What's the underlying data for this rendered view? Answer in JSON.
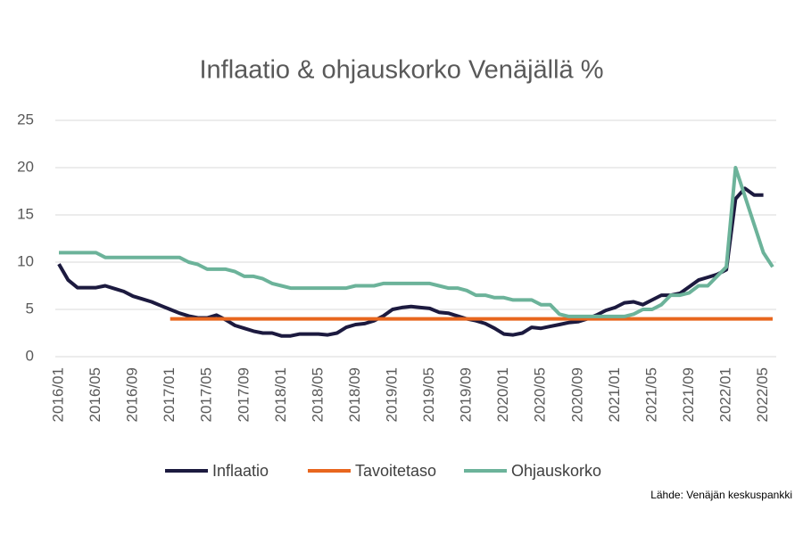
{
  "chart_data": {
    "type": "line",
    "title": "Inflaatio & ohjauskorko Venäjällä %",
    "source": "Lähde: Venäjän keskuspankki",
    "categories": [
      "2016/01",
      null,
      null,
      null,
      "2016/05",
      null,
      null,
      null,
      "2016/09",
      null,
      null,
      null,
      "2017/01",
      null,
      null,
      null,
      "2017/05",
      null,
      null,
      null,
      "2017/09",
      null,
      null,
      null,
      "2018/01",
      null,
      null,
      null,
      "2018/05",
      null,
      null,
      null,
      "2018/09",
      null,
      null,
      null,
      "2019/01",
      null,
      null,
      null,
      "2019/05",
      null,
      null,
      null,
      "2019/09",
      null,
      null,
      null,
      "2020/01",
      null,
      null,
      null,
      "2020/05",
      null,
      null,
      null,
      "2020/09",
      null,
      null,
      null,
      "2021/01",
      null,
      null,
      null,
      "2021/05",
      null,
      null,
      null,
      "2021/09",
      null,
      null,
      null,
      "2022/01",
      null,
      null,
      null,
      "2022/05",
      null
    ],
    "series": [
      {
        "name": "Inflaatio",
        "color": "#1c1a3f",
        "values": [
          9.8,
          8.1,
          7.3,
          7.3,
          7.3,
          7.5,
          7.2,
          6.9,
          6.4,
          6.1,
          5.8,
          5.4,
          5.0,
          4.6,
          4.3,
          4.1,
          4.1,
          4.4,
          3.9,
          3.3,
          3.0,
          2.7,
          2.5,
          2.5,
          2.2,
          2.2,
          2.4,
          2.4,
          2.4,
          2.3,
          2.5,
          3.1,
          3.4,
          3.5,
          3.8,
          4.3,
          5.0,
          5.2,
          5.3,
          5.2,
          5.1,
          4.7,
          4.6,
          4.3,
          4.0,
          3.8,
          3.5,
          3.0,
          2.4,
          2.3,
          2.5,
          3.1,
          3.0,
          3.2,
          3.4,
          3.6,
          3.7,
          4.0,
          4.4,
          4.9,
          5.2,
          5.7,
          5.8,
          5.5,
          6.0,
          6.5,
          6.5,
          6.7,
          7.4,
          8.1,
          8.4,
          8.7,
          9.2,
          16.7,
          17.8,
          17.1,
          17.1,
          null
        ]
      },
      {
        "name": "Tavoitetaso",
        "color": "#e8661e",
        "values": [
          null,
          null,
          null,
          null,
          null,
          null,
          null,
          null,
          null,
          null,
          null,
          null,
          4,
          4,
          4,
          4,
          4,
          4,
          4,
          4,
          4,
          4,
          4,
          4,
          4,
          4,
          4,
          4,
          4,
          4,
          4,
          4,
          4,
          4,
          4,
          4,
          4,
          4,
          4,
          4,
          4,
          4,
          4,
          4,
          4,
          4,
          4,
          4,
          4,
          4,
          4,
          4,
          4,
          4,
          4,
          4,
          4,
          4,
          4,
          4,
          4,
          4,
          4,
          4,
          4,
          4,
          4,
          4,
          4,
          4,
          4,
          4,
          4,
          4,
          4,
          4,
          4,
          4
        ]
      },
      {
        "name": "Ohjauskorko",
        "color": "#6cb39a",
        "values": [
          11,
          11,
          11,
          11,
          11,
          10.5,
          10.5,
          10.5,
          10.5,
          10.5,
          10.5,
          10.5,
          10.5,
          10.5,
          10.0,
          9.75,
          9.25,
          9.25,
          9.25,
          9.0,
          8.5,
          8.5,
          8.25,
          7.75,
          7.5,
          7.25,
          7.25,
          7.25,
          7.25,
          7.25,
          7.25,
          7.25,
          7.5,
          7.5,
          7.5,
          7.75,
          7.75,
          7.75,
          7.75,
          7.75,
          7.75,
          7.5,
          7.25,
          7.25,
          7.0,
          6.5,
          6.5,
          6.25,
          6.25,
          6.0,
          6.0,
          6.0,
          5.5,
          5.5,
          4.5,
          4.25,
          4.25,
          4.25,
          4.25,
          4.25,
          4.25,
          4.25,
          4.5,
          5.0,
          5.0,
          5.5,
          6.5,
          6.5,
          6.75,
          7.5,
          7.5,
          8.5,
          9.5,
          20,
          17,
          14,
          11,
          9.5
        ]
      }
    ],
    "ylim": [
      0,
      25
    ],
    "yticks": [
      0,
      5,
      10,
      15,
      20,
      25
    ],
    "grid": true,
    "legend": "bottom"
  }
}
